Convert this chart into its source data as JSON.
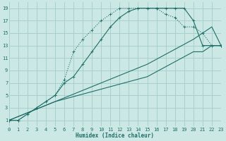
{
  "bg_color": "#cce8e4",
  "grid_color": "#a8d0cc",
  "line_color": "#1e6e68",
  "xlabel": "Humidex (Indice chaleur)",
  "xlim": [
    0,
    23
  ],
  "ylim": [
    0,
    20
  ],
  "xticks": [
    0,
    1,
    2,
    3,
    4,
    5,
    6,
    7,
    8,
    9,
    10,
    11,
    12,
    13,
    14,
    15,
    16,
    17,
    18,
    19,
    20,
    21,
    22,
    23
  ],
  "yticks": [
    1,
    3,
    5,
    7,
    9,
    11,
    13,
    15,
    17,
    19
  ],
  "curve_dotted_x": [
    0,
    1,
    2,
    3,
    4,
    5,
    6,
    7,
    8,
    9,
    10,
    11,
    12,
    13,
    14,
    15,
    16,
    17,
    18,
    19,
    20,
    21,
    22,
    23
  ],
  "curve_dotted_y": [
    1,
    1,
    2,
    3,
    4,
    5,
    7,
    8,
    10,
    12,
    14,
    16,
    17.5,
    18.5,
    19,
    19,
    19,
    19,
    19,
    19,
    17,
    13,
    13,
    13
  ],
  "curve_solid_x": [
    0,
    1,
    2,
    3,
    4,
    5,
    6,
    7,
    8,
    9,
    10,
    11,
    12,
    13,
    14,
    15,
    16,
    17,
    18,
    19,
    20,
    21,
    22,
    23
  ],
  "curve_solid_y": [
    1,
    1,
    2,
    3,
    4,
    5,
    7.5,
    12,
    14,
    15.5,
    17,
    18,
    19,
    19,
    19,
    19,
    19,
    18,
    17.5,
    16,
    16,
    15,
    13,
    13
  ],
  "curve_line1_x": [
    0,
    5,
    10,
    15,
    20,
    21,
    22,
    23
  ],
  "curve_line1_y": [
    1,
    4,
    7,
    10,
    14,
    15,
    16,
    13
  ],
  "curve_line2_x": [
    0,
    5,
    10,
    15,
    20,
    21,
    22,
    23
  ],
  "curve_line2_y": [
    1,
    4,
    6,
    8,
    12,
    12,
    13,
    13
  ]
}
